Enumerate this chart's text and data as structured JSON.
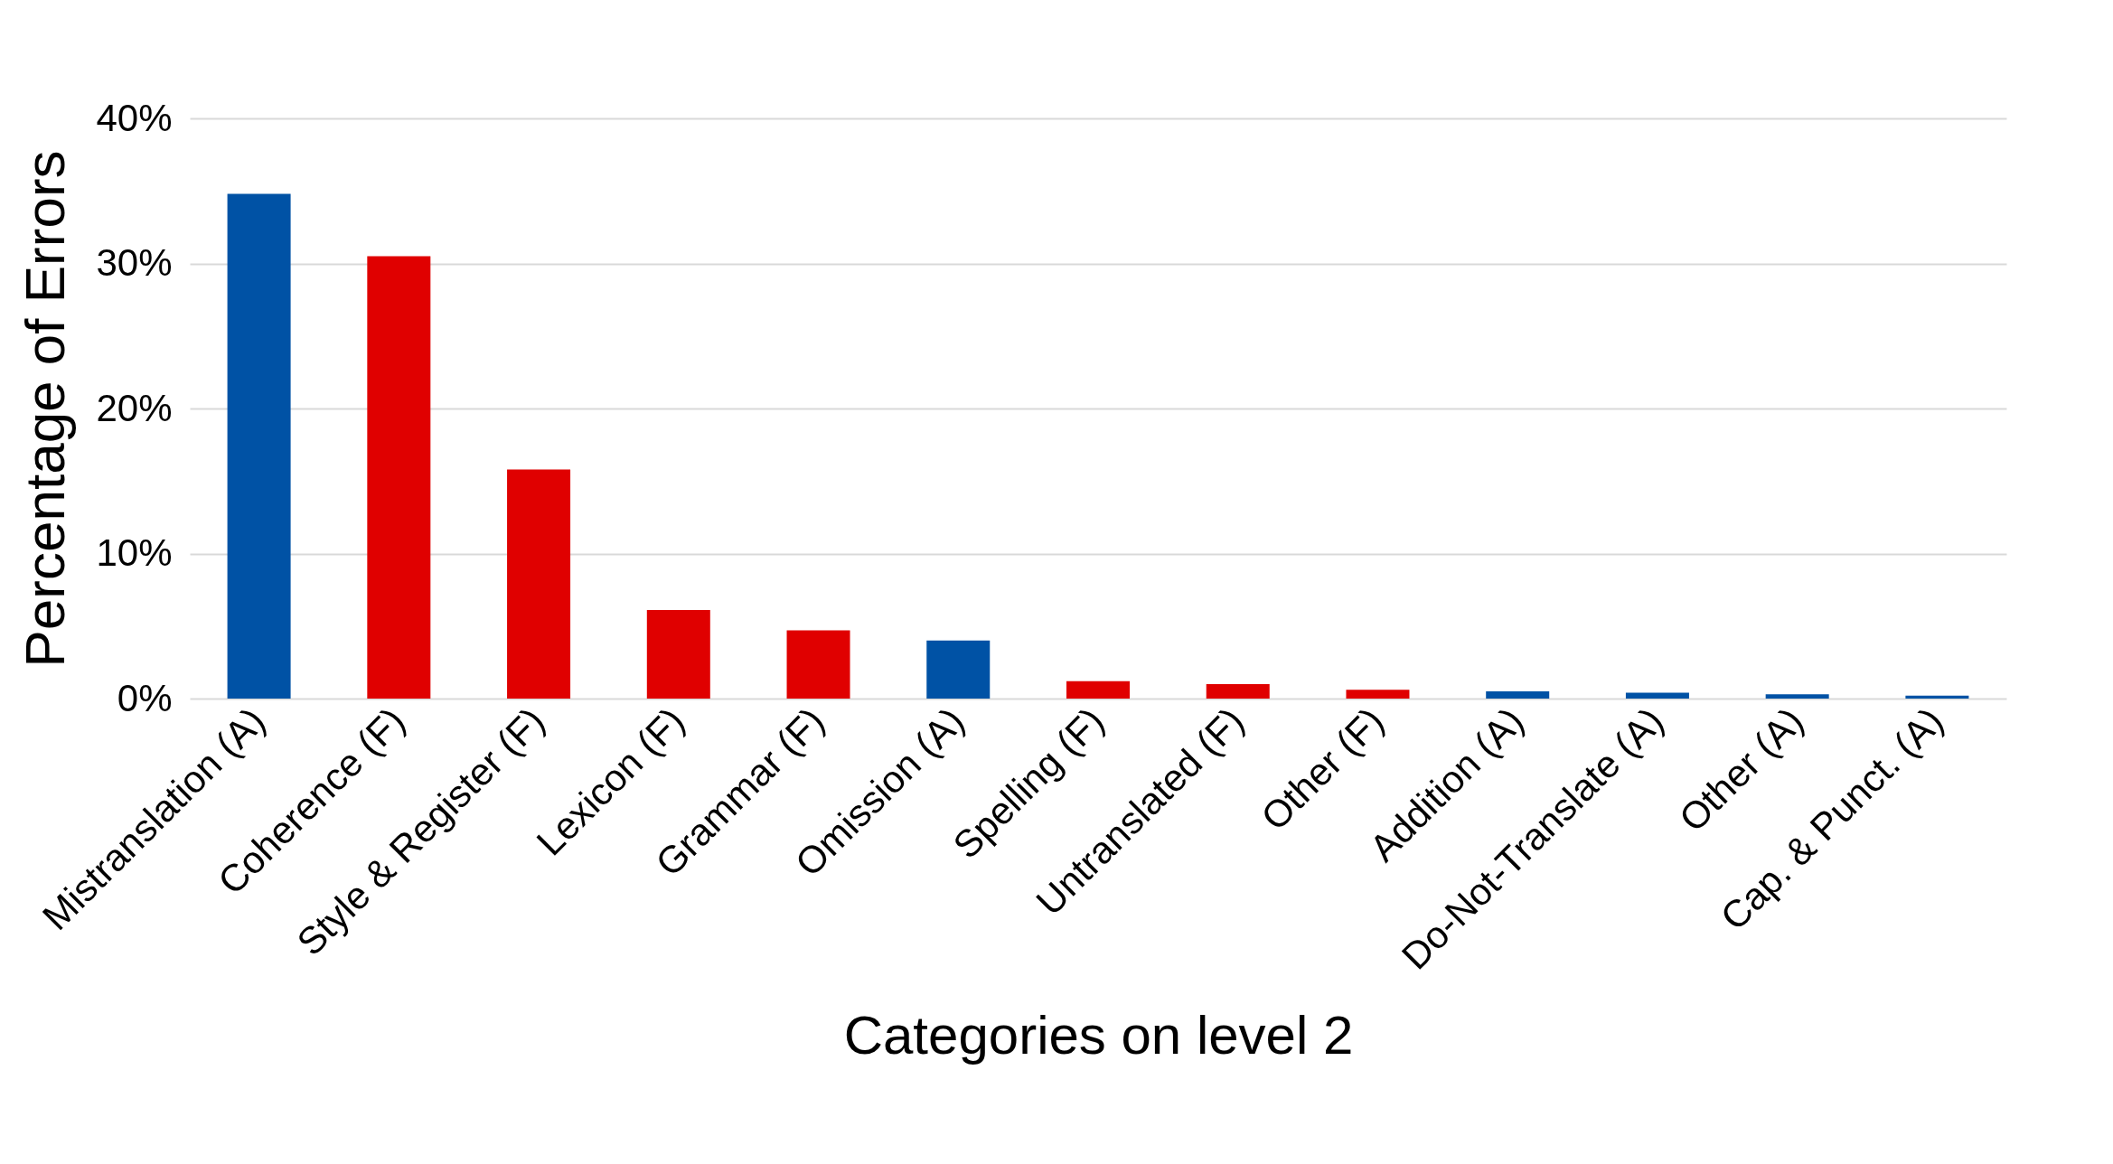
{
  "chart_data": {
    "type": "bar",
    "xlabel": "Categories on level 2",
    "ylabel": "Percentage of Errors",
    "categories": [
      "Mistranslation (A)",
      "Coherence (F)",
      "Style & Register (F)",
      "Lexicon (F)",
      "Grammar (F)",
      "Omission (A)",
      "Spelling (F)",
      "Untranslated (F)",
      "Other (F)",
      "Addition (A)",
      "Do-Not-Translate (A)",
      "Other (A)",
      "Cap. & Punct. (A)"
    ],
    "values": [
      34.8,
      30.5,
      15.8,
      6.1,
      4.7,
      4.0,
      1.2,
      1.0,
      0.6,
      0.5,
      0.4,
      0.3,
      0.2
    ],
    "colors": [
      "#0052a5",
      "#e00000",
      "#e00000",
      "#e00000",
      "#e00000",
      "#0052a5",
      "#e00000",
      "#e00000",
      "#e00000",
      "#0052a5",
      "#0052a5",
      "#0052a5",
      "#0052a5"
    ],
    "ylim": [
      0,
      40
    ],
    "yticks": [
      {
        "value": 0,
        "label": "0%"
      },
      {
        "value": 10,
        "label": "10%"
      },
      {
        "value": 20,
        "label": "20%"
      },
      {
        "value": 30,
        "label": "30%"
      },
      {
        "value": 40,
        "label": "40%"
      }
    ],
    "grid": "y",
    "legend": false
  }
}
